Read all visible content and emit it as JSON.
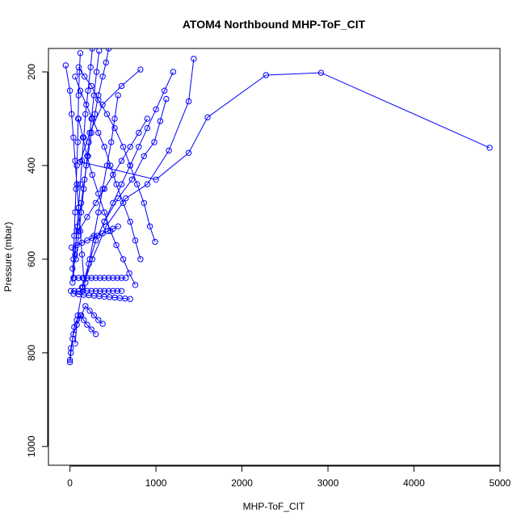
{
  "chart_data": {
    "type": "scatter",
    "title": "ATOM4 Northbound MHP-ToF_CIT",
    "xlabel": "MHP-ToF_CIT",
    "ylabel": "Pressure (mbar)",
    "xlim": [
      -250,
      5000
    ],
    "ylim": [
      1040,
      150
    ],
    "y_inverted": true,
    "x_ticks": [
      0,
      1000,
      2000,
      3000,
      4000,
      5000
    ],
    "y_ticks": [
      200,
      400,
      600,
      800,
      1000
    ],
    "grid": false,
    "legend": "none",
    "marker": "open-circle",
    "line_mode": "points-and-lines",
    "color": "#0000ff",
    "series": [
      {
        "x": [
          4880,
          2920,
          2280,
          1600,
          1380,
          1000,
          120,
          230,
          380,
          600,
          820
        ],
        "y": [
          362,
          202,
          207,
          297,
          373,
          430,
          392,
          330,
          270,
          230,
          195
        ]
      },
      {
        "x": [
          1440,
          1380,
          1150,
          900,
          650,
          420,
          260,
          150,
          90,
          60
        ],
        "y": [
          172,
          263,
          368,
          440,
          470,
          530,
          600,
          660,
          720,
          780
        ]
      },
      {
        "x": [
          1120,
          1050,
          980,
          860,
          720,
          560,
          400,
          300,
          220,
          140
        ],
        "y": [
          258,
          305,
          350,
          380,
          430,
          470,
          520,
          560,
          610,
          660
        ]
      },
      {
        "x": [
          990,
          930,
          860,
          780,
          700,
          620,
          520,
          430,
          330,
          250,
          170,
          100
        ],
        "y": [
          563,
          530,
          480,
          440,
          400,
          360,
          320,
          290,
          260,
          230,
          210,
          190
        ]
      },
      {
        "x": [
          820,
          760,
          700,
          620,
          540,
          470,
          400,
          330,
          260,
          190,
          120,
          60
        ],
        "y": [
          600,
          560,
          520,
          480,
          440,
          400,
          360,
          330,
          300,
          270,
          240,
          210
        ]
      },
      {
        "x": [
          760,
          690,
          620,
          540,
          470,
          400,
          330,
          260,
          200,
          150,
          100
        ],
        "y": [
          655,
          630,
          600,
          570,
          540,
          500,
          460,
          420,
          380,
          340,
          300
        ]
      },
      {
        "x": [
          650,
          600,
          550,
          500,
          450,
          400,
          350,
          300,
          250,
          200,
          150,
          100,
          50
        ],
        "y": [
          640,
          640,
          640,
          640,
          640,
          640,
          640,
          640,
          640,
          640,
          640,
          640,
          640
        ]
      },
      {
        "x": [
          600,
          550,
          500,
          450,
          400,
          350,
          300,
          250,
          200,
          150,
          100,
          50,
          10
        ],
        "y": [
          668,
          668,
          668,
          668,
          668,
          668,
          668,
          668,
          668,
          668,
          668,
          668,
          668
        ]
      },
      {
        "x": [
          700,
          640,
          580,
          520,
          460,
          400,
          340,
          280,
          220,
          160,
          100,
          40
        ],
        "y": [
          685,
          684,
          683,
          682,
          681,
          680,
          679,
          678,
          677,
          676,
          675,
          674
        ]
      },
      {
        "x": [
          560,
          500,
          440,
          380,
          320,
          260,
          200,
          140,
          80,
          20
        ],
        "y": [
          530,
          535,
          540,
          545,
          550,
          555,
          560,
          565,
          570,
          575
        ]
      },
      {
        "x": [
          380,
          330,
          280,
          230,
          180,
          130,
          80,
          40,
          10,
          0
        ],
        "y": [
          738,
          730,
          720,
          710,
          700,
          720,
          740,
          760,
          790,
          815
        ]
      },
      {
        "x": [
          300,
          250,
          200,
          160,
          120,
          80,
          50,
          30,
          10,
          0
        ],
        "y": [
          760,
          750,
          740,
          730,
          720,
          730,
          745,
          770,
          800,
          820
        ]
      },
      {
        "x": [
          450,
          420,
          380,
          330,
          290,
          250,
          210,
          170,
          130,
          90,
          60,
          30
        ],
        "y": [
          150,
          180,
          210,
          250,
          290,
          330,
          380,
          430,
          480,
          530,
          580,
          620
        ]
      },
      {
        "x": [
          260,
          240,
          210,
          180,
          160,
          140,
          120,
          100,
          80,
          60,
          40
        ],
        "y": [
          150,
          190,
          240,
          290,
          340,
          390,
          440,
          490,
          540,
          590,
          640
        ]
      },
      {
        "x": [
          120,
          110,
          100,
          95,
          90,
          80,
          70,
          60,
          50,
          40,
          30
        ],
        "y": [
          160,
          200,
          250,
          300,
          350,
          400,
          450,
          500,
          550,
          600,
          650
        ]
      },
      {
        "x": [
          -50,
          0,
          20,
          40,
          60,
          80,
          100,
          120,
          140,
          160
        ],
        "y": [
          186,
          240,
          290,
          340,
          390,
          440,
          490,
          540,
          590,
          640
        ]
      },
      {
        "x": [
          560,
          520,
          480,
          430,
          380,
          330,
          280,
          230,
          180
        ],
        "y": [
          250,
          300,
          350,
          400,
          450,
          500,
          550,
          600,
          650
        ]
      },
      {
        "x": [
          900,
          800,
          700,
          600,
          500,
          400,
          300,
          200,
          100
        ],
        "y": [
          300,
          330,
          360,
          390,
          420,
          450,
          480,
          510,
          540
        ]
      },
      {
        "x": [
          1200,
          1100,
          1000,
          900,
          800,
          700,
          600,
          500,
          400
        ],
        "y": [
          200,
          240,
          280,
          320,
          360,
          400,
          440,
          480,
          520
        ]
      },
      {
        "x": [
          340,
          310,
          280,
          250,
          220,
          190,
          160,
          130,
          100,
          70
        ],
        "y": [
          155,
          200,
          250,
          300,
          350,
          400,
          450,
          500,
          550,
          600
        ]
      }
    ]
  }
}
